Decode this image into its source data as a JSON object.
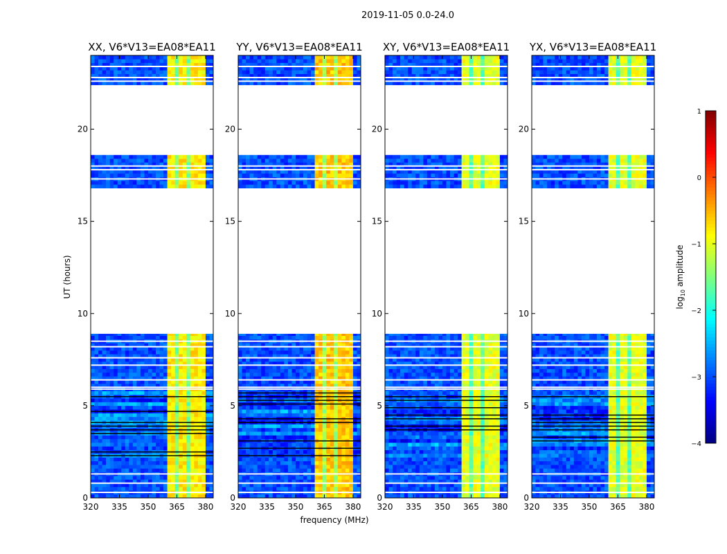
{
  "chart_data": {
    "type": "heatmap",
    "suptitle": "2019-11-05 0.0-24.0",
    "xlabel": "frequency (MHz)",
    "ylabel": "UT (hours)",
    "xlim": [
      320,
      384
    ],
    "ylim": [
      0,
      24
    ],
    "xticks": [
      "320",
      "335",
      "350",
      "365",
      "380"
    ],
    "xtick_values": [
      320,
      335,
      350,
      365,
      380
    ],
    "yticks": [
      "0",
      "5",
      "10",
      "15",
      "20"
    ],
    "ytick_values": [
      0,
      5,
      10,
      15,
      20
    ],
    "panels": [
      {
        "title": "XX, V6*V13=EA08*EA11",
        "band_level": -0.8
      },
      {
        "title": "YY, V6*V13=EA08*EA11",
        "band_level": -0.6
      },
      {
        "title": "XY, V6*V13=EA08*EA11",
        "band_level": -1.0
      },
      {
        "title": "YX, V6*V13=EA08*EA11",
        "band_level": -1.0
      }
    ],
    "data_time_ranges_hours": [
      [
        0,
        8.9
      ],
      [
        16.8,
        18.6
      ],
      [
        22.4,
        24
      ]
    ],
    "flagged_time_rows_hours": [
      0.3,
      0.8,
      1.3,
      5.9,
      6.0,
      6.4,
      7.2,
      7.6,
      8.2,
      8.5,
      17.3,
      17.8,
      18.0,
      22.6,
      22.8,
      23.4
    ],
    "rfi_dense_range_hours": [
      2.0,
      5.8
    ],
    "background_level": -3.0,
    "band_mhz": [
      361,
      380
    ],
    "band_gaps_mhz": [
      365.5,
      371,
      376
    ],
    "colorbar": {
      "label": "log10 amplitude",
      "label_base": "log",
      "label_sub": "10",
      "label_rest": " amplitude",
      "range": [
        -4,
        1
      ],
      "ticks": [
        "−4",
        "−3",
        "−2",
        "−1",
        "0",
        "1"
      ],
      "tick_values": [
        -4,
        -3,
        -2,
        -1,
        0,
        1
      ],
      "colormap": "jet"
    }
  }
}
